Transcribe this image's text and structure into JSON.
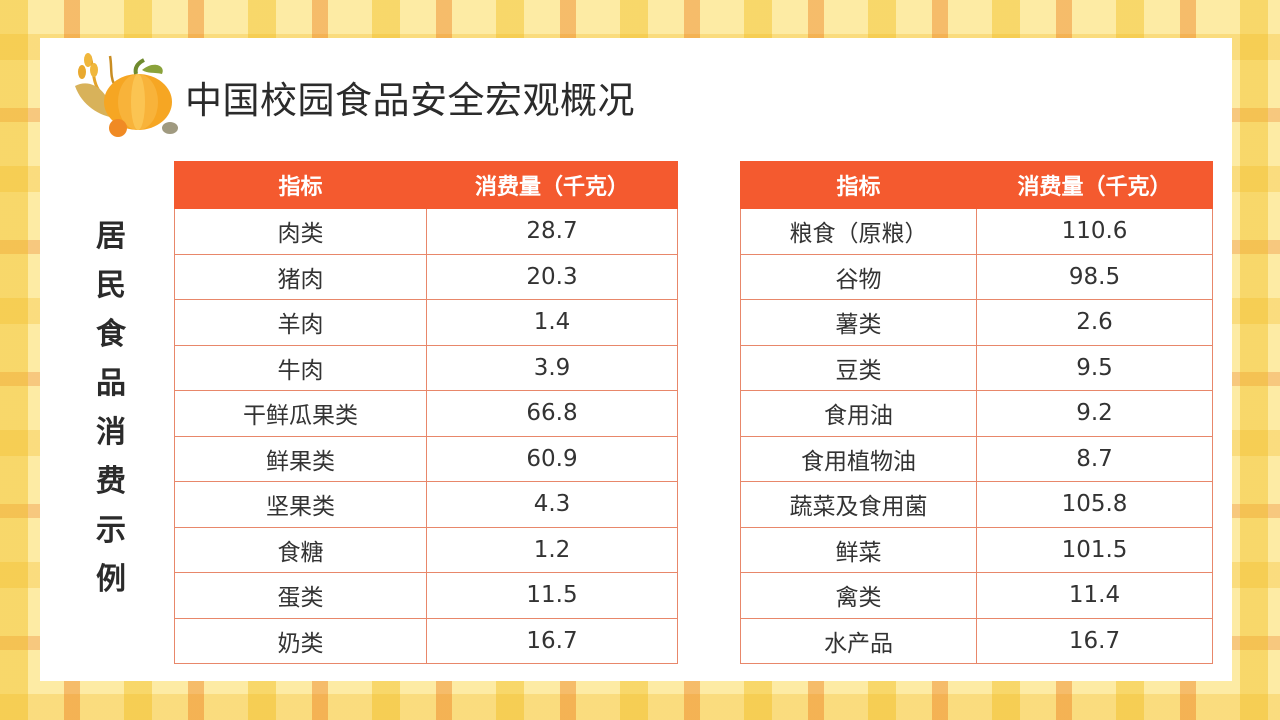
{
  "title": "中国校园食品安全宏观概况",
  "side_title": [
    "居",
    "民",
    "食",
    "品",
    "消",
    "费",
    "示",
    "例"
  ],
  "table_left": {
    "headers": [
      "指标",
      "消费量（千克）"
    ],
    "rows": [
      [
        "肉类",
        "28.7"
      ],
      [
        "猪肉",
        "20.3"
      ],
      [
        "羊肉",
        "1.4"
      ],
      [
        "牛肉",
        "3.9"
      ],
      [
        "干鲜瓜果类",
        "66.8"
      ],
      [
        "鲜果类",
        "60.9"
      ],
      [
        "坚果类",
        "4.3"
      ],
      [
        "食糖",
        "1.2"
      ],
      [
        "蛋类",
        "11.5"
      ],
      [
        "奶类",
        "16.7"
      ]
    ]
  },
  "table_right": {
    "headers": [
      "指标",
      "消费量（千克）"
    ],
    "rows": [
      [
        "粮食（原粮）",
        "110.6"
      ],
      [
        "谷物",
        "98.5"
      ],
      [
        "薯类",
        "2.6"
      ],
      [
        "豆类",
        "9.5"
      ],
      [
        "食用油",
        "9.2"
      ],
      [
        "食用植物油",
        "8.7"
      ],
      [
        "蔬菜及食用菌",
        "105.8"
      ],
      [
        "鲜菜",
        "101.5"
      ],
      [
        "禽类",
        "11.4"
      ],
      [
        "水产品",
        "16.7"
      ]
    ]
  },
  "colors": {
    "header_bg": "#f45a2f",
    "cell_border": "#e8876a"
  },
  "icons": {
    "decoration": "pumpkin-harvest-icon"
  }
}
